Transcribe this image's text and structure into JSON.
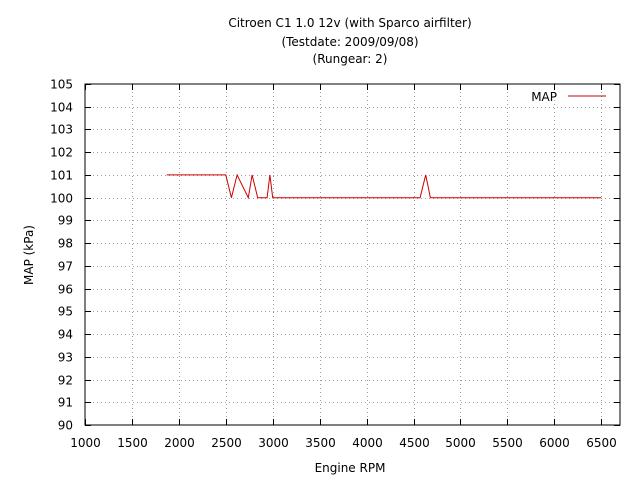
{
  "chart_data": {
    "type": "line",
    "title": [
      "Citroen C1 1.0 12v (with Sparco airfilter)",
      "(Testdate: 2009/09/08)",
      "(Rungear: 2)"
    ],
    "xlabel": "Engine RPM",
    "ylabel": "MAP (kPa)",
    "xlim": [
      1000,
      6700
    ],
    "ylim": [
      90,
      105
    ],
    "xticks": [
      1000,
      1500,
      2000,
      2500,
      3000,
      3500,
      4000,
      4500,
      5000,
      5500,
      6000,
      6500
    ],
    "yticks": [
      90,
      91,
      92,
      93,
      94,
      95,
      96,
      97,
      98,
      99,
      100,
      101,
      102,
      103,
      104,
      105
    ],
    "grid": true,
    "legend_position": "top-right",
    "series": [
      {
        "name": "MAP",
        "color": "#cc0000",
        "x": [
          1870,
          2500,
          2560,
          2620,
          2740,
          2780,
          2840,
          2940,
          2970,
          3000,
          4570,
          4630,
          4680,
          6500
        ],
        "y": [
          101,
          101,
          100,
          101,
          100,
          101,
          100,
          100,
          101,
          100,
          100,
          101,
          100,
          100
        ]
      }
    ]
  }
}
